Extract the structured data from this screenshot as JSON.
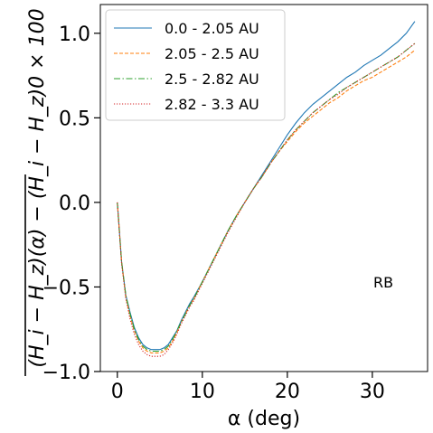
{
  "chart_data": {
    "type": "line",
    "xlabel": "α (deg)",
    "ylabel": "(H_i − H_z)(α) − (H_i − H_z)0 × 100",
    "xlim": [
      -2,
      36.5
    ],
    "ylim": [
      -1.0,
      1.17
    ],
    "xticks": [
      0,
      10,
      20,
      30
    ],
    "xtick_labels": [
      "0",
      "10",
      "20",
      "30"
    ],
    "yticks": [
      -1.0,
      -0.5,
      0.0,
      0.5,
      1.0
    ],
    "ytick_labels": [
      "−1.0",
      "−0.5",
      "0.0",
      "0.5",
      "1.0"
    ],
    "grid": false,
    "legend_position": "top-left",
    "annotation": "RB",
    "series": [
      {
        "name": "0.0 - 2.05 AU",
        "color": "#1f77b4",
        "style": "solid",
        "x": [
          0,
          0.5,
          1,
          1.5,
          2,
          2.5,
          3,
          3.5,
          4,
          4.5,
          5,
          5.5,
          6,
          6.5,
          7,
          7.5,
          8,
          8.5,
          9,
          10,
          11,
          12,
          13,
          14,
          15,
          16,
          17,
          18,
          19,
          20,
          21,
          22,
          23,
          24,
          25,
          26,
          27,
          28,
          29,
          30,
          31,
          32,
          33,
          34,
          35
        ],
        "y": [
          0.0,
          -0.35,
          -0.55,
          -0.65,
          -0.74,
          -0.8,
          -0.84,
          -0.86,
          -0.87,
          -0.87,
          -0.87,
          -0.86,
          -0.84,
          -0.8,
          -0.76,
          -0.7,
          -0.65,
          -0.6,
          -0.56,
          -0.47,
          -0.37,
          -0.27,
          -0.17,
          -0.08,
          0.0,
          0.08,
          0.16,
          0.24,
          0.32,
          0.4,
          0.47,
          0.53,
          0.58,
          0.62,
          0.66,
          0.7,
          0.74,
          0.77,
          0.81,
          0.84,
          0.87,
          0.91,
          0.95,
          1.0,
          1.07
        ]
      },
      {
        "name": "2.05 - 2.5 AU",
        "color": "#ff7f0e",
        "style": "dashed",
        "x": [
          0,
          0.5,
          1,
          1.5,
          2,
          2.5,
          3,
          3.5,
          4,
          4.5,
          5,
          5.5,
          6,
          6.5,
          7,
          7.5,
          8,
          8.5,
          9,
          10,
          11,
          12,
          13,
          14,
          15,
          16,
          17,
          18,
          19,
          20,
          21,
          22,
          23,
          24,
          25,
          26,
          27,
          28,
          29,
          30,
          31,
          32,
          33,
          34,
          35
        ],
        "y": [
          0.0,
          -0.35,
          -0.56,
          -0.67,
          -0.76,
          -0.82,
          -0.86,
          -0.88,
          -0.89,
          -0.89,
          -0.89,
          -0.88,
          -0.86,
          -0.82,
          -0.77,
          -0.71,
          -0.66,
          -0.61,
          -0.57,
          -0.47,
          -0.37,
          -0.27,
          -0.17,
          -0.08,
          0.0,
          0.08,
          0.15,
          0.23,
          0.3,
          0.36,
          0.42,
          0.47,
          0.51,
          0.55,
          0.59,
          0.62,
          0.66,
          0.69,
          0.72,
          0.74,
          0.77,
          0.8,
          0.83,
          0.86,
          0.9
        ]
      },
      {
        "name": "2.5 - 2.82 AU",
        "color": "#2ca02c",
        "style": "dashdot",
        "x": [
          0,
          0.5,
          1,
          1.5,
          2,
          2.5,
          3,
          3.5,
          4,
          4.5,
          5,
          5.5,
          6,
          6.5,
          7,
          7.5,
          8,
          8.5,
          9,
          10,
          11,
          12,
          13,
          14,
          15,
          16,
          17,
          18,
          19,
          20,
          21,
          22,
          23,
          24,
          25,
          26,
          27,
          28,
          29,
          30,
          31,
          32,
          33,
          34,
          35
        ],
        "y": [
          0.0,
          -0.35,
          -0.55,
          -0.66,
          -0.75,
          -0.81,
          -0.85,
          -0.87,
          -0.88,
          -0.88,
          -0.88,
          -0.87,
          -0.85,
          -0.81,
          -0.76,
          -0.71,
          -0.66,
          -0.61,
          -0.57,
          -0.47,
          -0.37,
          -0.27,
          -0.17,
          -0.08,
          0.0,
          0.08,
          0.15,
          0.23,
          0.3,
          0.37,
          0.43,
          0.48,
          0.53,
          0.57,
          0.61,
          0.65,
          0.68,
          0.71,
          0.74,
          0.77,
          0.8,
          0.83,
          0.86,
          0.9,
          0.94
        ]
      },
      {
        "name": "2.82 - 3.3 AU",
        "color": "#d62728",
        "style": "dotted",
        "x": [
          0,
          0.5,
          1,
          1.5,
          2,
          2.5,
          3,
          3.5,
          4,
          4.5,
          5,
          5.5,
          6,
          6.5,
          7,
          7.5,
          8,
          8.5,
          9,
          10,
          11,
          12,
          13,
          14,
          15,
          16,
          17,
          18,
          19,
          20,
          21,
          22,
          23,
          24,
          25,
          26,
          27,
          28,
          29,
          30,
          31,
          32,
          33,
          34,
          35
        ],
        "y": [
          0.0,
          -0.36,
          -0.57,
          -0.69,
          -0.78,
          -0.84,
          -0.88,
          -0.9,
          -0.91,
          -0.91,
          -0.91,
          -0.9,
          -0.87,
          -0.83,
          -0.78,
          -0.72,
          -0.67,
          -0.62,
          -0.58,
          -0.48,
          -0.38,
          -0.28,
          -0.18,
          -0.09,
          0.0,
          0.08,
          0.15,
          0.23,
          0.3,
          0.37,
          0.43,
          0.48,
          0.53,
          0.57,
          0.61,
          0.64,
          0.68,
          0.71,
          0.74,
          0.77,
          0.8,
          0.83,
          0.86,
          0.9,
          0.94
        ]
      }
    ]
  }
}
